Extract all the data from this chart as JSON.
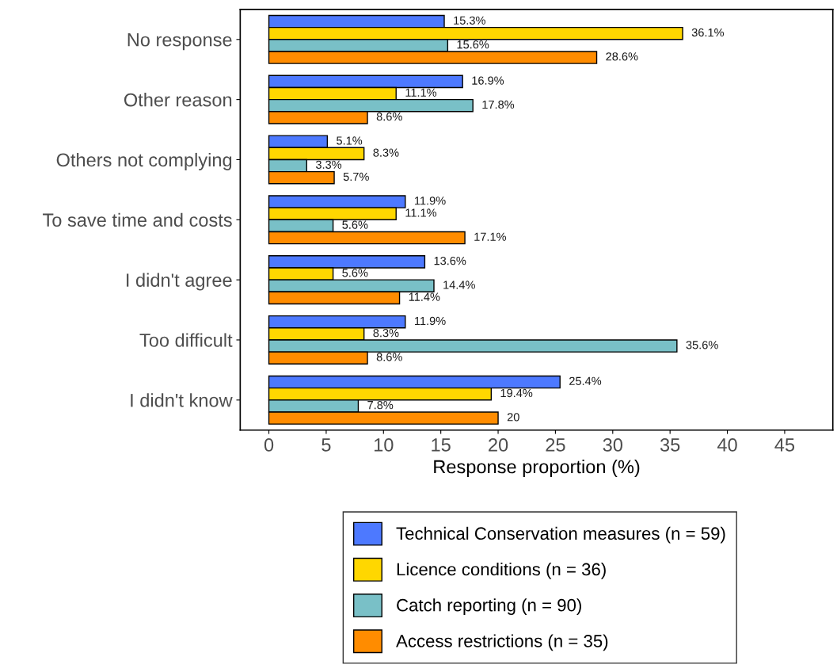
{
  "chart_data": {
    "type": "bar",
    "orientation": "horizontal",
    "xlabel": "Response proportion (%)",
    "categories": [
      "No response",
      "Other reason",
      "Others not complying",
      "To save time and costs",
      "I didn't agree",
      "Too difficult",
      "I didn't know"
    ],
    "series": [
      {
        "name": "Technical Conservation measures (n = 59)",
        "color": "#4d79ff",
        "values": [
          15.3,
          16.9,
          5.1,
          11.9,
          13.6,
          11.9,
          25.4
        ],
        "value_labels": [
          "15.3%",
          "16.9%",
          "5.1%",
          "11.9%",
          "13.6%",
          "11.9%",
          "25.4%"
        ]
      },
      {
        "name": "Licence conditions (n = 36)",
        "color": "#ffd700",
        "values": [
          36.1,
          11.1,
          8.3,
          11.1,
          5.6,
          8.3,
          19.4
        ],
        "value_labels": [
          "36.1%",
          "11.1%",
          "8.3%",
          "11.1%",
          "5.6%",
          "8.3%",
          "19.4%"
        ]
      },
      {
        "name": "Catch reporting (n = 90)",
        "color": "#79c0c7",
        "values": [
          15.6,
          17.8,
          3.3,
          5.6,
          14.4,
          35.6,
          7.8
        ],
        "value_labels": [
          "15.6%",
          "17.8%",
          "3.3%",
          "5.6%",
          "14.4%",
          "35.6%",
          "7.8%"
        ]
      },
      {
        "name": "Access restrictions (n = 35)",
        "color": "#ff8c00",
        "values": [
          28.6,
          8.6,
          5.7,
          17.1,
          11.4,
          8.6,
          20
        ],
        "value_labels": [
          "28.6%",
          "8.6%",
          "5.7%",
          "17.1%",
          "11.4%",
          "8.6%",
          "20"
        ]
      }
    ],
    "xlim": [
      -2.5,
      49.2
    ],
    "xticks": [
      0,
      5,
      10,
      15,
      20,
      25,
      30,
      35,
      40,
      45
    ],
    "grid": false,
    "legend": "bottom"
  }
}
